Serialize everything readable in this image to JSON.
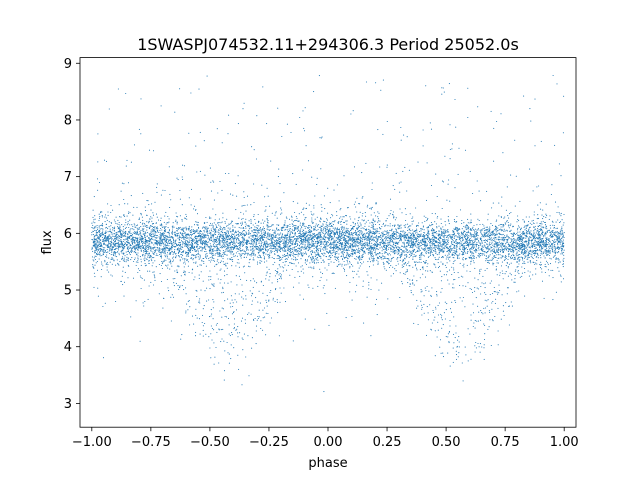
{
  "chart_data": {
    "type": "scatter",
    "title": "1SWASPJ074532.11+294306.3 Period 25052.0s",
    "xlabel": "phase",
    "ylabel": "flux",
    "xlim": [
      -1.05,
      1.05
    ],
    "ylim": [
      2.58,
      9.1
    ],
    "x_ticks": [
      -1.0,
      -0.75,
      -0.5,
      -0.25,
      0.0,
      0.25,
      0.5,
      0.75,
      1.0
    ],
    "x_tick_labels": [
      "−1.00",
      "−0.75",
      "−0.50",
      "−0.25",
      "0.00",
      "0.25",
      "0.50",
      "0.75",
      "1.00"
    ],
    "y_ticks": [
      3,
      4,
      5,
      6,
      7,
      8,
      9
    ],
    "y_tick_labels": [
      "3",
      "4",
      "5",
      "6",
      "7",
      "8",
      "9"
    ],
    "grid": false,
    "marker_color": "#1f77b4",
    "series": [
      {
        "description_of_distribution": "phase-folded light curve; dense band near flux 5.85 across all phases, eclipse dips to ~3.7 centered near phase -0.43 and 0.57, sparse outliers up to ~8.8",
        "baseline_flux": 5.85,
        "eclipse_centers": [
          -0.43,
          0.57
        ],
        "eclipse_min_flux": 3.7,
        "outlier_max_flux": 8.8
      }
    ]
  }
}
